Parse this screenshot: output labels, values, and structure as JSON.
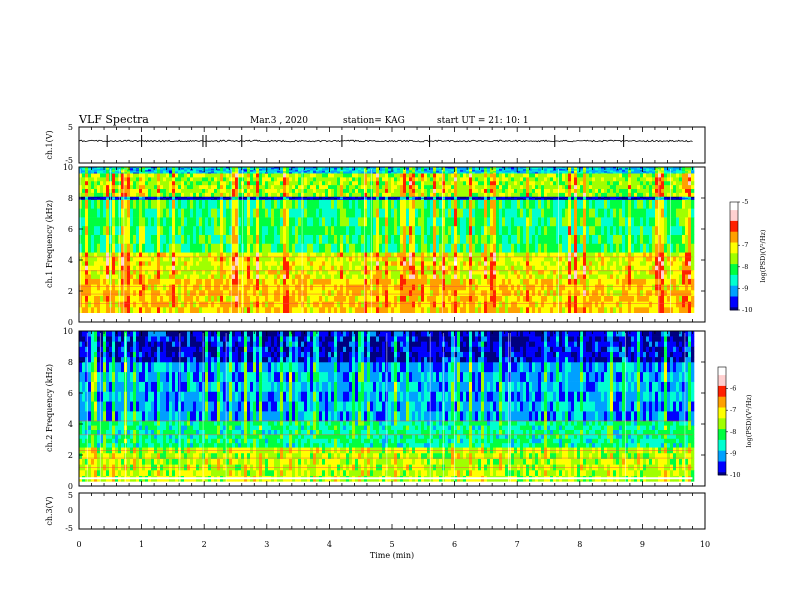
{
  "header": {
    "title": "VLF Spectra",
    "date": "Mar.3 , 2020",
    "station": "station= KAG",
    "start": "start UT = 21: 10: 1"
  },
  "chart_data": [
    {
      "type": "line",
      "panel": "ch1-waveform",
      "ylabel": "ch.1(V)",
      "ylim": [
        -5,
        5
      ],
      "yticks": [
        "5",
        "-5"
      ],
      "x_range_min": [
        0,
        9.8
      ],
      "baseline_v": 0,
      "spikes_min": [
        0.45,
        1.0,
        1.98,
        2.03,
        2.6,
        4.2,
        5.6,
        7.6,
        8.7
      ]
    },
    {
      "type": "heatmap",
      "panel": "ch1-spectrogram",
      "ylabel": "ch.1 Frequency (kHz)",
      "ylim": [
        0,
        10
      ],
      "yticks": [
        "0",
        "2",
        "4",
        "6",
        "8",
        "10"
      ],
      "colorbar": {
        "label": "log(PSD)(V²/Hz)",
        "range": [
          -10,
          -5
        ],
        "ticks": [
          "-5",
          "-7",
          "-8",
          "-9",
          "-10"
        ]
      },
      "bands_khz": [
        {
          "from": 0.6,
          "to": 2.8,
          "level": -6.8
        },
        {
          "from": 2.8,
          "to": 4.5,
          "level": -7.2
        },
        {
          "from": 4.5,
          "to": 7.9,
          "level": -8.1
        },
        {
          "from": 7.9,
          "to": 8.1,
          "level": -9.8
        },
        {
          "from": 8.1,
          "to": 9.6,
          "level": -7.5
        },
        {
          "from": 9.6,
          "to": 10.0,
          "level": -8.8
        }
      ]
    },
    {
      "type": "heatmap",
      "panel": "ch2-spectrogram",
      "ylabel": "ch.2 Frequency (kHz)",
      "ylim": [
        0,
        10
      ],
      "yticks": [
        "0",
        "2",
        "4",
        "6",
        "8",
        "10"
      ],
      "colorbar": {
        "label": "log(PSD)(V²/Hz)",
        "range": [
          -10,
          -5
        ],
        "ticks": [
          "-6",
          "-7",
          "-8",
          "-9",
          "-10"
        ]
      },
      "bands_khz": [
        {
          "from": 0.3,
          "to": 2.5,
          "level": -7.4
        },
        {
          "from": 2.5,
          "to": 4.2,
          "level": -8.3
        },
        {
          "from": 4.2,
          "to": 8.0,
          "level": -9.0
        },
        {
          "from": 8.0,
          "to": 10.0,
          "level": -9.7
        }
      ]
    },
    {
      "type": "line",
      "panel": "ch3-waveform",
      "ylabel": "ch.3(V)",
      "ylim": [
        -5,
        5
      ],
      "yticks": [
        "5",
        "0",
        "-5"
      ],
      "xlabel": "Time (min)",
      "xlim": [
        0,
        10
      ],
      "xticks": [
        "0",
        "1",
        "2",
        "3",
        "4",
        "5",
        "6",
        "7",
        "8",
        "9",
        "10"
      ]
    }
  ],
  "colors": {
    "scale": [
      "#000080",
      "#0000ff",
      "#00a0ff",
      "#00ffd0",
      "#00ff40",
      "#a0ff00",
      "#ffff00",
      "#ffa000",
      "#ff2000",
      "#ffd0d0",
      "#ffffff"
    ]
  }
}
